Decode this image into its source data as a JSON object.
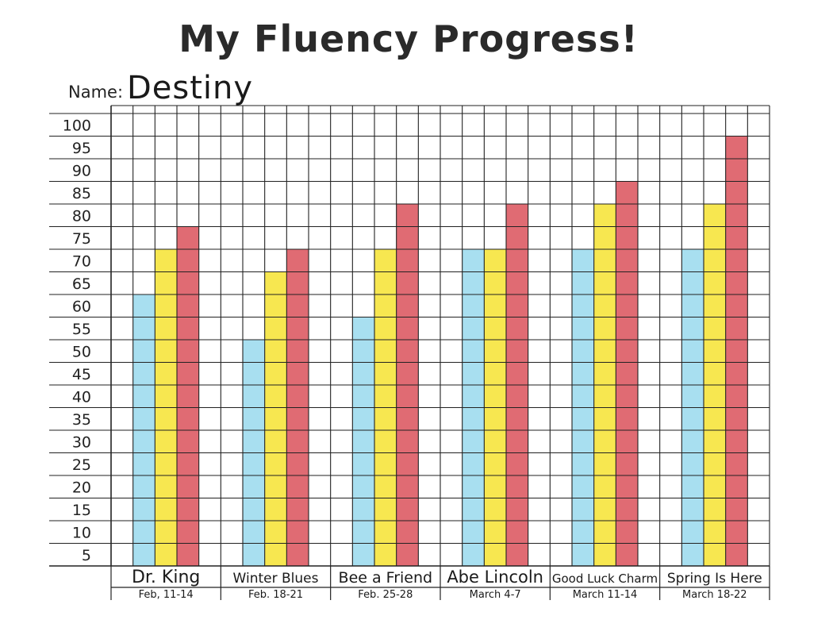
{
  "header": {
    "title": "My Fluency Progress!",
    "name_label": "Name:",
    "name_value": "Destiny"
  },
  "chart_data": {
    "type": "bar",
    "title": "My Fluency Progress!",
    "xlabel": "",
    "ylabel": "",
    "ylim": [
      0,
      100
    ],
    "yticks": [
      5,
      10,
      15,
      20,
      25,
      30,
      35,
      40,
      45,
      50,
      55,
      60,
      65,
      70,
      75,
      80,
      85,
      90,
      95,
      100
    ],
    "grid": true,
    "legend": "none",
    "categories": [
      "Dr. King",
      "Winter Blues",
      "Bee a Friend",
      "Abe Lincoln",
      "Good Luck Charm",
      "Spring Is Here"
    ],
    "dates": [
      "Feb, 11-14",
      "Feb. 18-21",
      "Feb. 25-28",
      "March 4-7",
      "March 11-14",
      "March 18-22"
    ],
    "series": [
      {
        "color": "#a8dff0",
        "values": [
          60,
          50,
          55,
          70,
          70,
          70
        ]
      },
      {
        "color": "#f7e750",
        "values": [
          70,
          65,
          70,
          70,
          80,
          80
        ]
      },
      {
        "color": "#e06b73",
        "values": [
          75,
          70,
          80,
          80,
          85,
          95
        ]
      }
    ]
  }
}
